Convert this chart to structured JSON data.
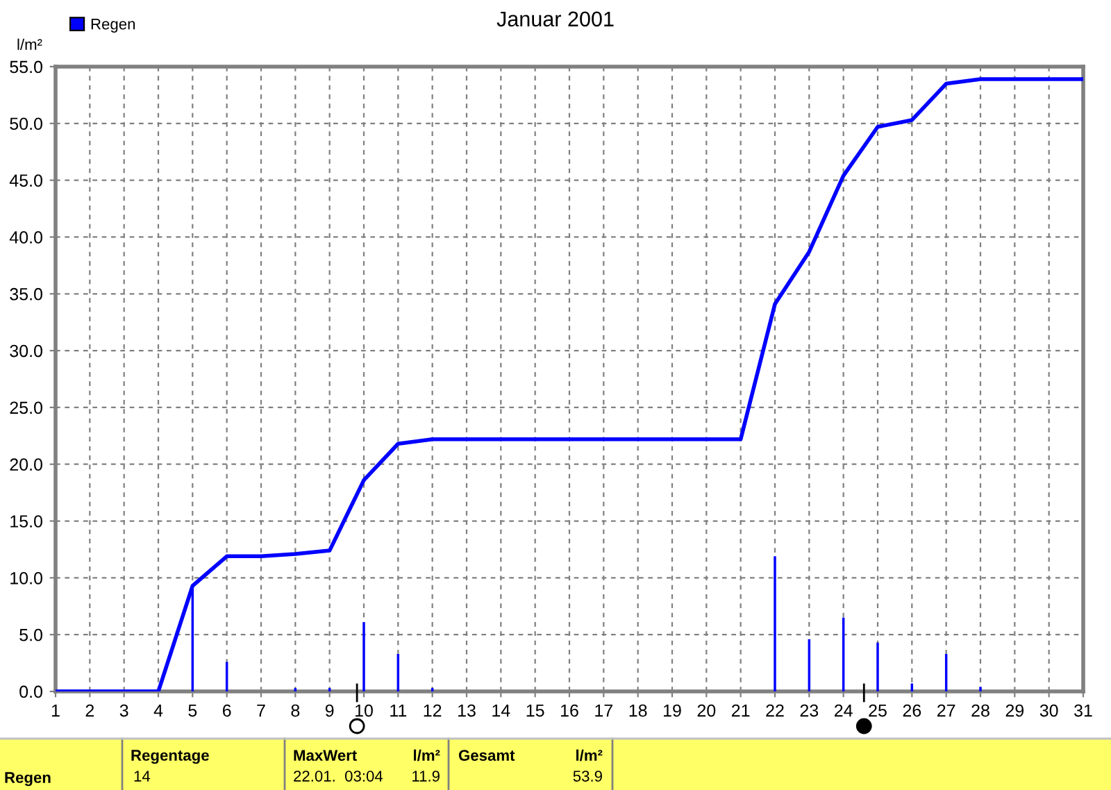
{
  "chart_data": {
    "type": "bar",
    "title": "Januar 2001",
    "ylabel": "l/m²",
    "x": [
      1,
      2,
      3,
      4,
      5,
      6,
      7,
      8,
      9,
      10,
      11,
      12,
      13,
      14,
      15,
      16,
      17,
      18,
      19,
      20,
      21,
      22,
      23,
      24,
      25,
      26,
      27,
      28,
      29,
      30,
      31
    ],
    "series": [
      {
        "name": "Regen",
        "color": "#0000ff",
        "values": [
          0,
          0,
          0,
          0,
          9.3,
          2.6,
          0,
          0.3,
          0.3,
          6.1,
          3.3,
          0.3,
          0,
          0,
          0,
          0,
          0,
          0,
          0,
          0,
          0,
          11.9,
          4.6,
          6.5,
          4.3,
          0.7,
          3.3,
          0.4,
          0,
          0,
          0
        ]
      },
      {
        "type": "line",
        "color": "#0000ff",
        "values": [
          0,
          0,
          0,
          0,
          9.3,
          11.9,
          11.9,
          12.1,
          12.4,
          18.6,
          21.8,
          22.2,
          22.2,
          22.2,
          22.2,
          22.2,
          22.2,
          22.2,
          22.2,
          22.2,
          22.2,
          34.1,
          38.7,
          45.4,
          49.7,
          50.3,
          53.5,
          53.9,
          53.9,
          53.9,
          53.9
        ]
      }
    ],
    "xlim": [
      1,
      31
    ],
    "xticks": [
      1,
      2,
      3,
      4,
      5,
      6,
      7,
      8,
      9,
      10,
      11,
      12,
      13,
      14,
      15,
      16,
      17,
      18,
      19,
      20,
      21,
      22,
      23,
      24,
      25,
      26,
      27,
      28,
      29,
      30,
      31
    ],
    "ylim": [
      0,
      55
    ],
    "yticks": [
      {
        "value": 0,
        "label": "0.0"
      },
      {
        "value": 5,
        "label": "5.0"
      },
      {
        "value": 10,
        "label": "10.0"
      },
      {
        "value": 15,
        "label": "15.0"
      },
      {
        "value": 20,
        "label": "20.0"
      },
      {
        "value": 25,
        "label": "25.0"
      },
      {
        "value": 30,
        "label": "30.0"
      },
      {
        "value": 35,
        "label": "35.0"
      },
      {
        "value": 40,
        "label": "40.0"
      },
      {
        "value": 45,
        "label": "45.0"
      },
      {
        "value": 50,
        "label": "50.0"
      },
      {
        "value": 55,
        "label": "55.0"
      }
    ],
    "grid": true,
    "legend": "top left",
    "line_style": "solid",
    "marker": "none",
    "annotations": [
      "Regen",
      "Regentage",
      "14",
      "MaxWert",
      "22.01.  03:04",
      "l/m²",
      "11.9",
      "Gesamt",
      "l/m²",
      "53.9"
    ]
  }
}
